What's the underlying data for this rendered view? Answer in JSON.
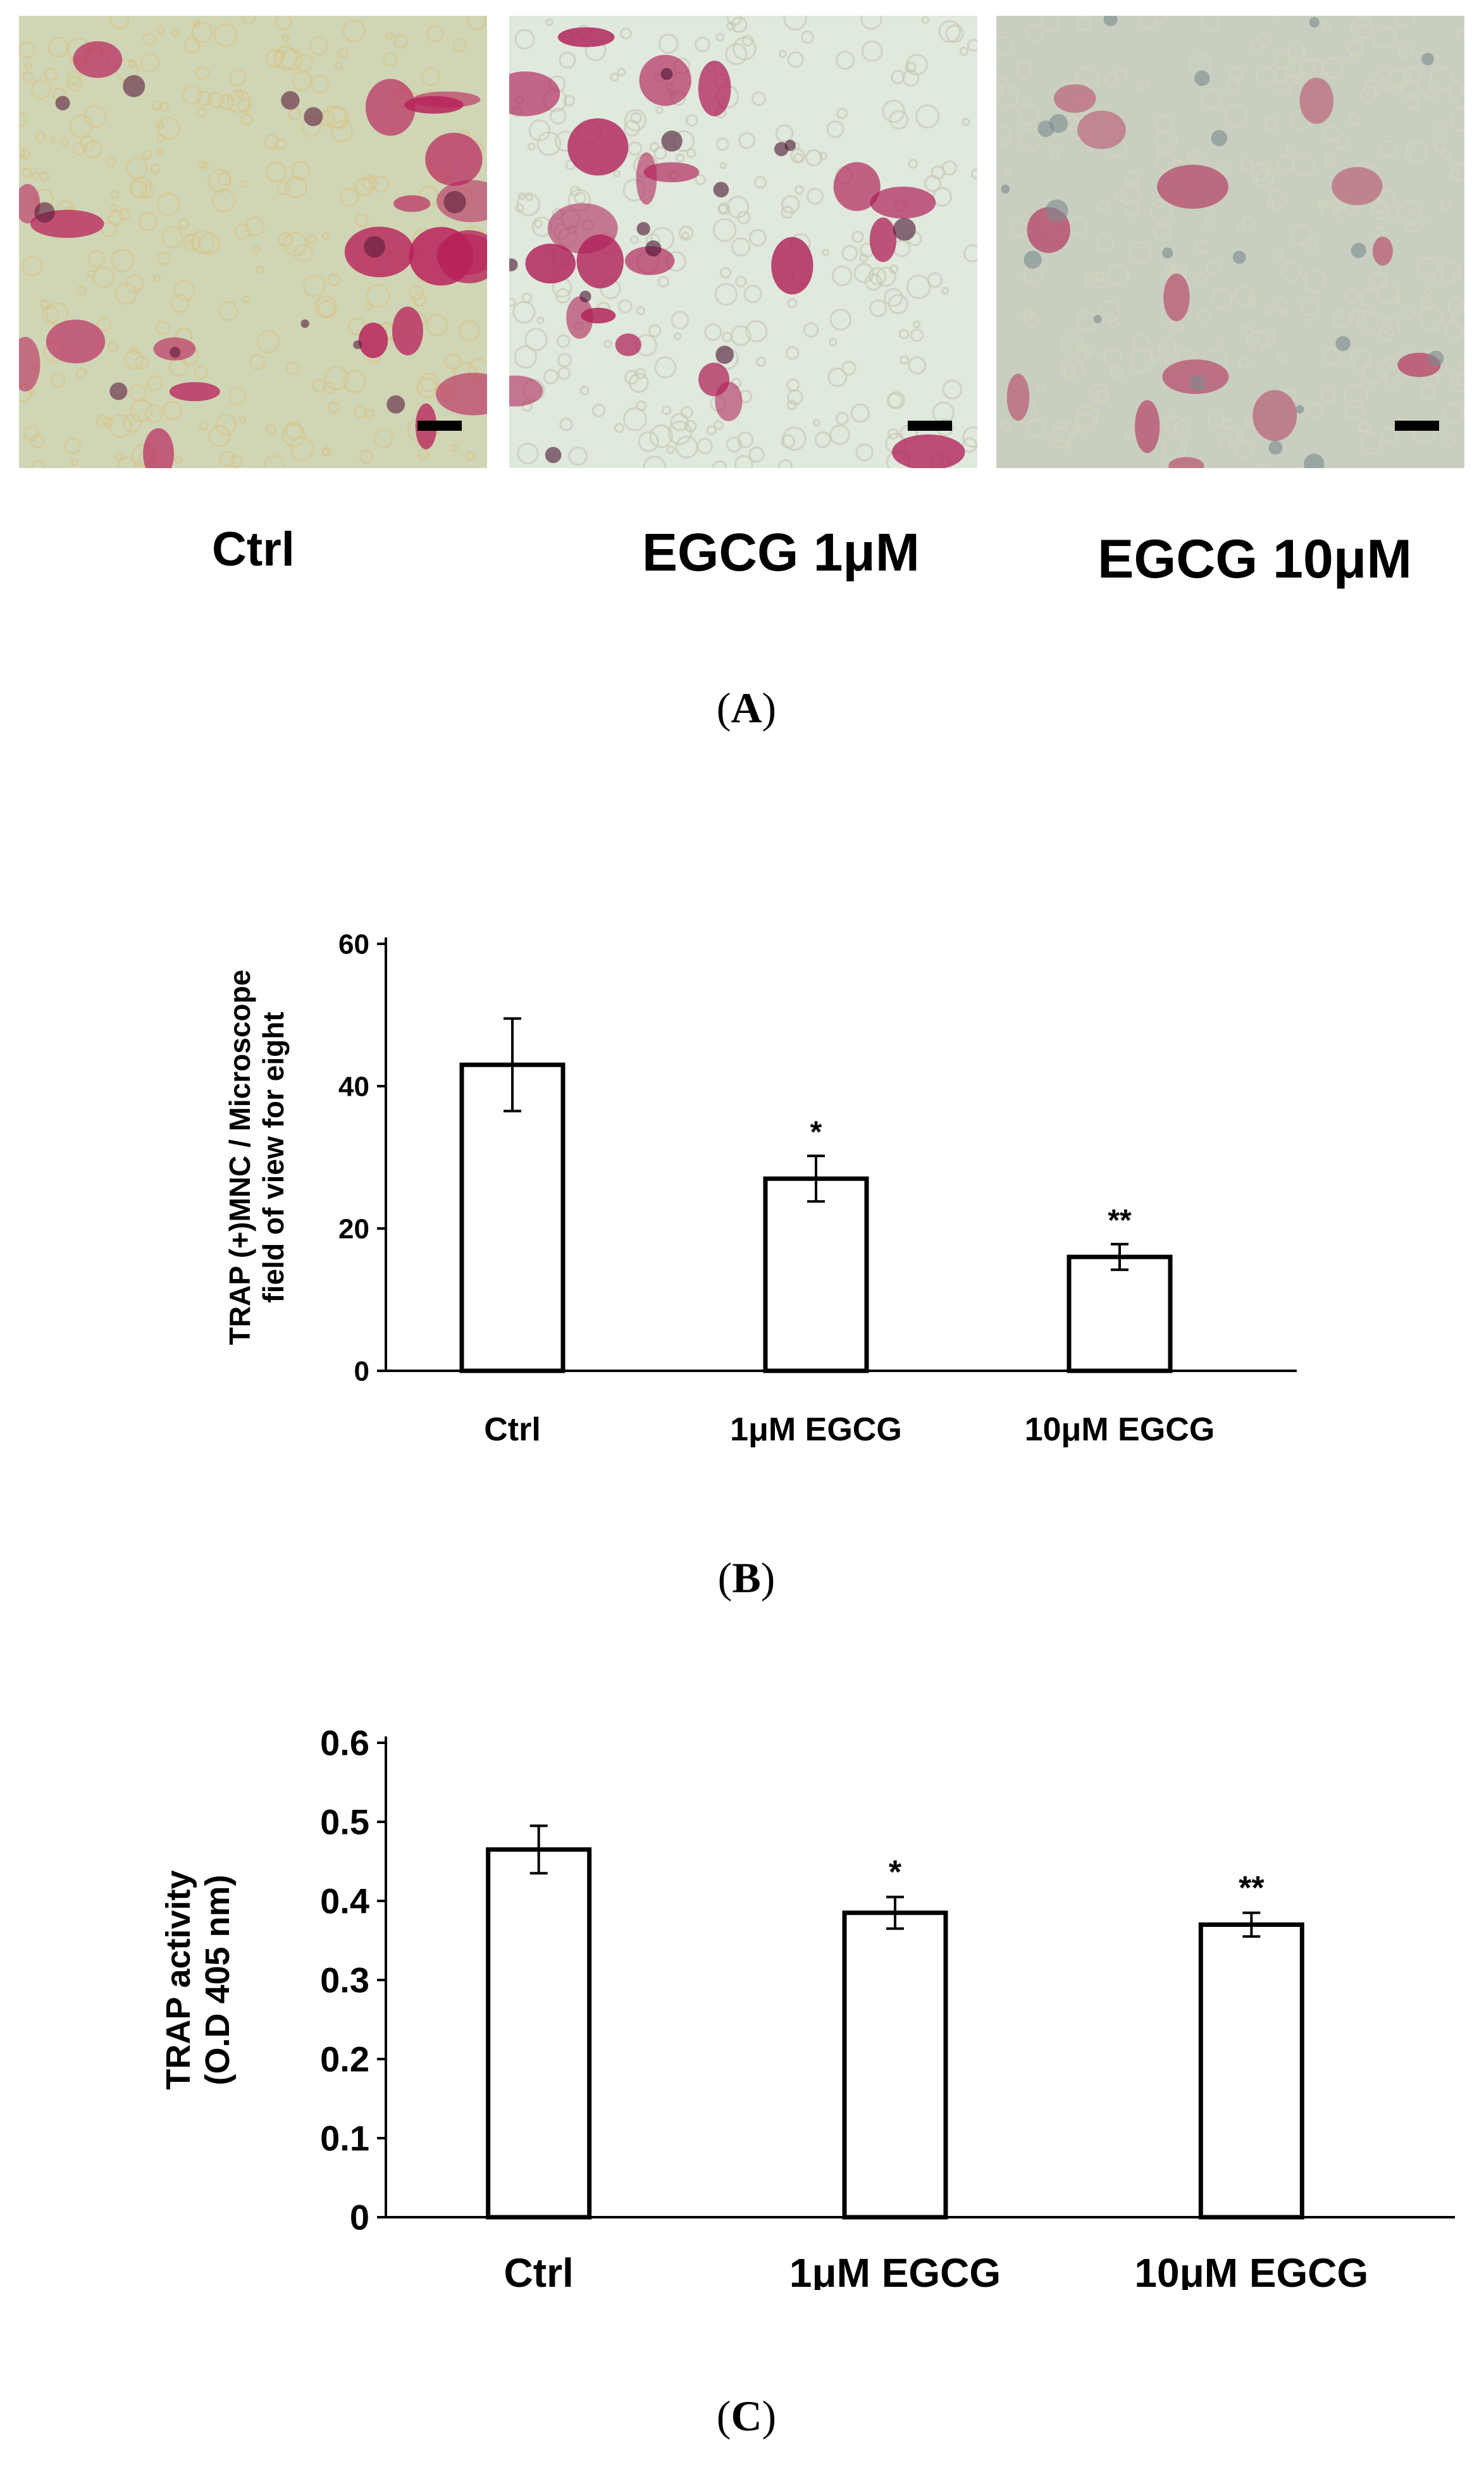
{
  "panel_a": {
    "images": [
      {
        "label": "Ctrl",
        "palette": {
          "bg": "#cfd6b6",
          "stain": "#b8205a",
          "dark": "#5a1a3a",
          "debris": "#d8c48a"
        }
      },
      {
        "label": "EGCG 1μM",
        "palette": {
          "bg": "#dfe9dc",
          "stain": "#b01e58",
          "dark": "#4a1232",
          "debris": "#c9c8b8"
        }
      },
      {
        "label": "EGCG 10μM",
        "palette": {
          "bg": "#c9cfc0",
          "stain": "#b8506e",
          "dark": "#7b8a90",
          "debris": "#d6d2bf"
        }
      }
    ],
    "tag": {
      "open": "(",
      "letter": "A",
      "close": ")"
    }
  },
  "panel_b": {
    "tag": {
      "open": "(",
      "letter": "B",
      "close": ")"
    }
  },
  "panel_c": {
    "tag": {
      "open": "(",
      "letter": "C",
      "close": ")"
    }
  },
  "chart_data": [
    {
      "type": "bar",
      "categories": [
        "Ctrl",
        "1μM EGCG",
        "10μM EGCG"
      ],
      "values": [
        43,
        27,
        16
      ],
      "errors": [
        6.5,
        3.2,
        1.8
      ],
      "significance": [
        "",
        "*",
        "**"
      ],
      "ylabel_lines": [
        "TRAP (+)MNC / Microscope",
        "field of view for eight"
      ],
      "yticks": [
        0,
        20,
        40,
        60
      ],
      "ylim": [
        0,
        60
      ],
      "grid": false
    },
    {
      "type": "bar",
      "categories": [
        "Ctrl",
        "1μM EGCG",
        "10μM EGCG"
      ],
      "values": [
        0.465,
        0.385,
        0.37
      ],
      "errors": [
        0.03,
        0.02,
        0.015
      ],
      "significance": [
        "",
        "*",
        "**"
      ],
      "ylabel_lines": [
        "TRAP activity",
        "(O.D 405 nm)"
      ],
      "yticks": [
        0,
        0.1,
        0.2,
        0.3,
        0.4,
        0.5,
        0.6
      ],
      "ylim": [
        0,
        0.6
      ],
      "grid": false
    }
  ]
}
